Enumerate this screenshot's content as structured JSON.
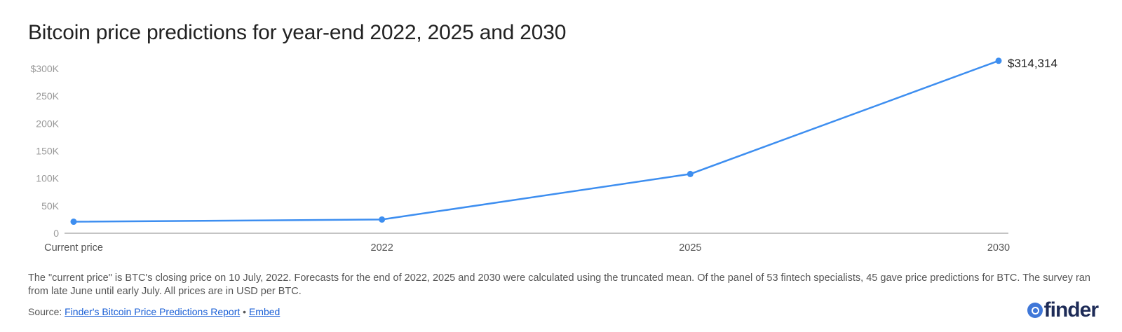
{
  "title": "Bitcoin price predictions for year-end 2022, 2025 and 2030",
  "chart_data": {
    "type": "line",
    "categories": [
      "Current price",
      "2022",
      "2025",
      "2030"
    ],
    "series": [
      {
        "values": [
          21000,
          25000,
          108000,
          314314
        ],
        "color": "#3d8ef0"
      }
    ],
    "ylim": [
      0,
      300000
    ],
    "yticks": [
      0,
      50000,
      100000,
      150000,
      200000,
      250000,
      300000
    ],
    "ytick_labels": [
      "0",
      "50K",
      "100K",
      "150K",
      "200K",
      "250K",
      "$300K"
    ],
    "data_label": {
      "index": 3,
      "text": "$314,314"
    },
    "grid": false,
    "legend": "none"
  },
  "note": "The \"current price\" is BTC's closing price on 10 July, 2022. Forecasts for the end of 2022, 2025 and 2030 were calculated using the truncated mean. Of the panel of 53 fintech specialists, 45 gave price predictions for BTC. The survey ran from late June until early July. All prices are in USD per BTC.",
  "source": {
    "label": "Source: ",
    "link_text": "Finder's Bitcoin Price Predictions Report",
    "separator": " • ",
    "embed_text": "Embed"
  },
  "logo": {
    "text": "finder",
    "icon": "finder-search-icon"
  }
}
